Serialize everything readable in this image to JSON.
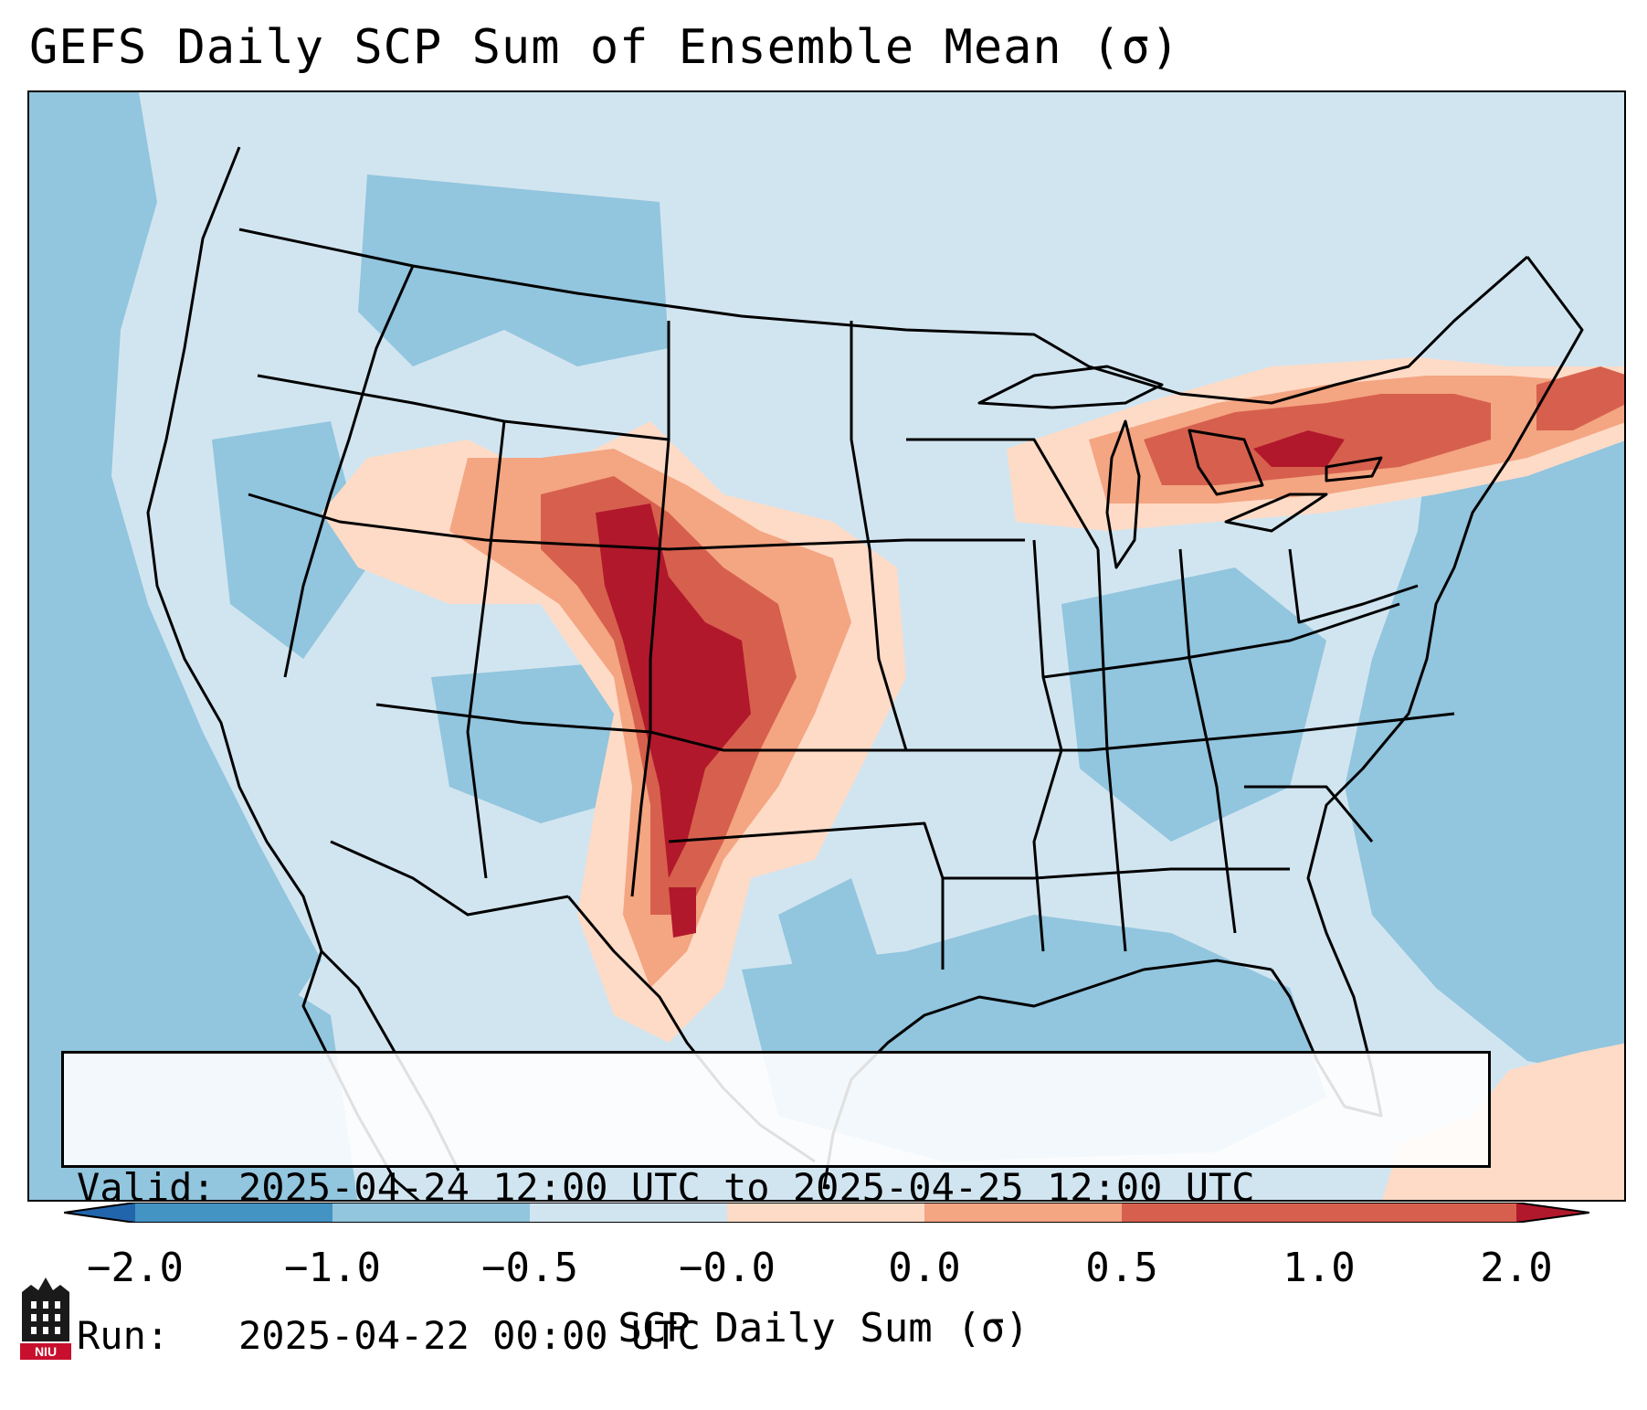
{
  "title": "GEFS Daily SCP Sum of Ensemble Mean (σ)",
  "info": {
    "valid_line": "Valid: 2025-04-24 12:00 UTC to 2025-04-25 12:00 UTC",
    "run_line": "Run:   2025-04-22 00:00 UTC"
  },
  "colorbar": {
    "label": "SCP Daily Sum (σ)",
    "ticks": [
      "−2.0",
      "−1.0",
      "−0.5",
      "−0.0",
      "0.0",
      "0.5",
      "1.0",
      "2.0"
    ],
    "colors": [
      "#2166ac",
      "#4393c3",
      "#92c5de",
      "#d1e5f0",
      "#fddbc7",
      "#f4a582",
      "#d6604d",
      "#b2182b"
    ]
  },
  "logo": {
    "text": "NIU"
  },
  "map": {
    "background_color": "#d1e5f0",
    "ocean_color": "#92c5de",
    "anomaly_regions": [
      "plains corridor Nebraska Kansas Oklahoma Texas",
      "Great Lakes to Northeast band"
    ]
  }
}
